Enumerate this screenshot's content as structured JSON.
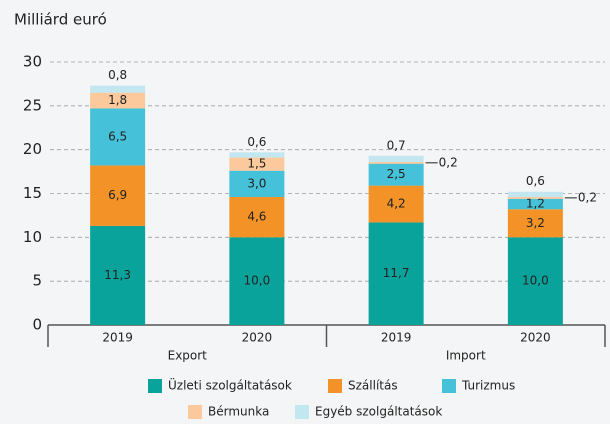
{
  "chart_data": {
    "type": "stacked_bar",
    "y_axis_label": "Milliárd euró",
    "categories": [
      "2019",
      "2020",
      "2019",
      "2020"
    ],
    "groups": [
      "Export",
      "Import"
    ],
    "series": [
      {
        "name": "Üzleti szolgáltatások",
        "color": "#0aa39b",
        "values": [
          11.3,
          10.0,
          11.7,
          10.0
        ],
        "value_labels": [
          "11,3",
          "10,0",
          "11,7",
          "10,0"
        ]
      },
      {
        "name": "Szállítás",
        "color": "#f39327",
        "values": [
          6.9,
          4.6,
          4.2,
          3.2
        ],
        "value_labels": [
          "6,9",
          "4,6",
          "4,2",
          "3,2"
        ]
      },
      {
        "name": "Turizmus",
        "color": "#45c1d9",
        "values": [
          6.5,
          3.0,
          2.5,
          1.2
        ],
        "value_labels": [
          "6,5",
          "3,0",
          "2,5",
          "1,2"
        ]
      },
      {
        "name": "Bérmunka",
        "color": "#fcc99c",
        "values": [
          1.8,
          1.5,
          0.2,
          0.2
        ],
        "value_labels": [
          "1,8",
          "1,5",
          "0,2",
          "0,2"
        ]
      },
      {
        "name": "Egyéb szolgáltatások",
        "color": "#c3e7f1",
        "values": [
          0.8,
          0.6,
          0.7,
          0.6
        ],
        "value_labels": [
          "0,8",
          "0,6",
          "0,7",
          "0,6"
        ]
      }
    ],
    "ylim": [
      0,
      30
    ],
    "yticks": [
      0,
      5,
      10,
      15,
      20,
      25,
      30
    ],
    "grid": true
  }
}
